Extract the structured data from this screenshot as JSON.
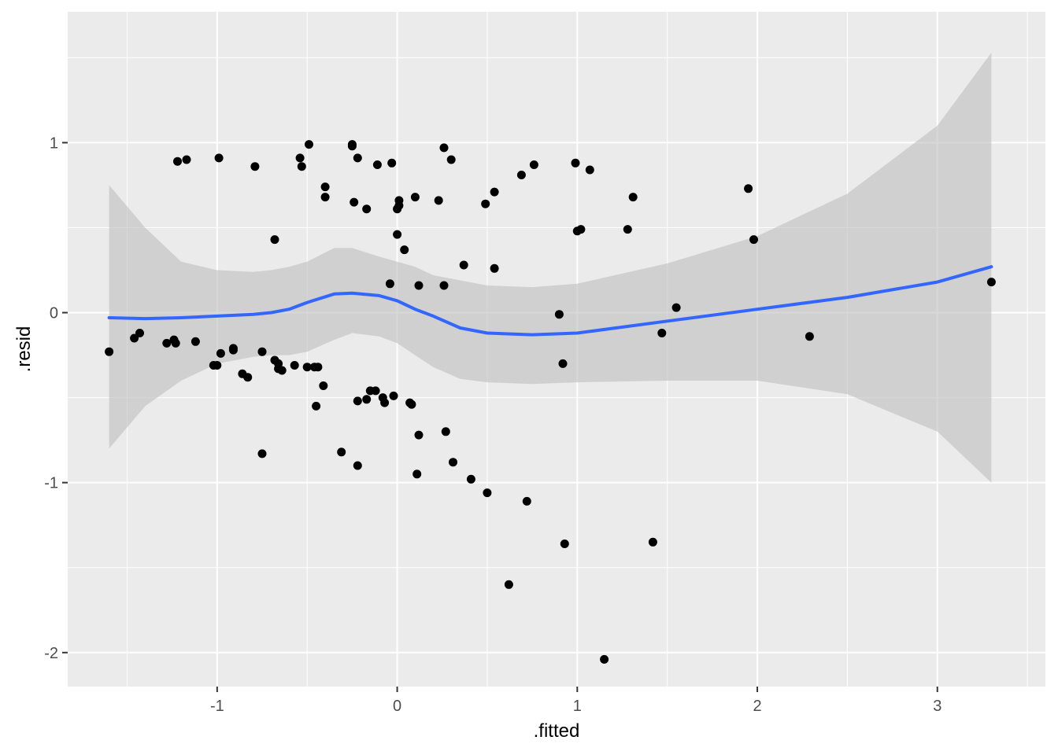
{
  "chart_data": {
    "type": "scatter",
    "xlabel": ".fitted",
    "ylabel": ".resid",
    "xlim": [
      -1.83,
      3.6
    ],
    "ylim": [
      -2.2,
      1.77
    ],
    "x_ticks": [
      -1,
      0,
      1,
      2,
      3
    ],
    "x_tick_labels": [
      "-1",
      "0",
      "1",
      "2",
      "3"
    ],
    "y_ticks": [
      -2,
      -1,
      0,
      1
    ],
    "y_tick_labels": [
      "-2",
      "-1",
      "0",
      "1"
    ],
    "grid": true,
    "panel_background": "#ebebeb",
    "grid_color": "#ffffff",
    "point_color": "#000000",
    "smooth_color": "#3366ff",
    "ribbon_color": "#bebebe",
    "points": [
      {
        "x": -1.6,
        "y": -0.23
      },
      {
        "x": -1.46,
        "y": -0.15
      },
      {
        "x": -1.43,
        "y": -0.12
      },
      {
        "x": -1.28,
        "y": -0.18
      },
      {
        "x": -1.24,
        "y": -0.16
      },
      {
        "x": -1.23,
        "y": -0.18
      },
      {
        "x": -1.22,
        "y": 0.89
      },
      {
        "x": -1.17,
        "y": 0.9
      },
      {
        "x": -1.12,
        "y": -0.17
      },
      {
        "x": -1.02,
        "y": -0.31
      },
      {
        "x": -1.0,
        "y": -0.31
      },
      {
        "x": -0.99,
        "y": 0.91
      },
      {
        "x": -0.98,
        "y": -0.24
      },
      {
        "x": -0.91,
        "y": -0.21
      },
      {
        "x": -0.91,
        "y": -0.22
      },
      {
        "x": -0.86,
        "y": -0.36
      },
      {
        "x": -0.83,
        "y": -0.38
      },
      {
        "x": -0.79,
        "y": 0.86
      },
      {
        "x": -0.75,
        "y": -0.23
      },
      {
        "x": -0.75,
        "y": -0.83
      },
      {
        "x": -0.68,
        "y": 0.43
      },
      {
        "x": -0.68,
        "y": -0.28
      },
      {
        "x": -0.66,
        "y": -0.3
      },
      {
        "x": -0.66,
        "y": -0.33
      },
      {
        "x": -0.64,
        "y": -0.34
      },
      {
        "x": -0.57,
        "y": -0.31
      },
      {
        "x": -0.54,
        "y": 0.91
      },
      {
        "x": -0.53,
        "y": 0.86
      },
      {
        "x": -0.5,
        "y": -0.32
      },
      {
        "x": -0.49,
        "y": 0.99
      },
      {
        "x": -0.46,
        "y": -0.32
      },
      {
        "x": -0.45,
        "y": -0.55
      },
      {
        "x": -0.44,
        "y": -0.32
      },
      {
        "x": -0.41,
        "y": -0.43
      },
      {
        "x": -0.4,
        "y": 0.74
      },
      {
        "x": -0.4,
        "y": 0.68
      },
      {
        "x": -0.31,
        "y": -0.82
      },
      {
        "x": -0.25,
        "y": 0.99
      },
      {
        "x": -0.25,
        "y": 0.98
      },
      {
        "x": -0.24,
        "y": 0.65
      },
      {
        "x": -0.22,
        "y": 0.91
      },
      {
        "x": -0.22,
        "y": -0.52
      },
      {
        "x": -0.22,
        "y": -0.9
      },
      {
        "x": -0.17,
        "y": 0.61
      },
      {
        "x": -0.17,
        "y": -0.51
      },
      {
        "x": -0.15,
        "y": -0.46
      },
      {
        "x": -0.12,
        "y": -0.46
      },
      {
        "x": -0.11,
        "y": 0.87
      },
      {
        "x": -0.08,
        "y": -0.5
      },
      {
        "x": -0.07,
        "y": -0.53
      },
      {
        "x": -0.04,
        "y": 0.17
      },
      {
        "x": -0.03,
        "y": 0.88
      },
      {
        "x": -0.02,
        "y": -0.49
      },
      {
        "x": 0.0,
        "y": 0.46
      },
      {
        "x": 0.0,
        "y": 0.61
      },
      {
        "x": 0.01,
        "y": 0.66
      },
      {
        "x": 0.01,
        "y": 0.63
      },
      {
        "x": 0.04,
        "y": 0.37
      },
      {
        "x": 0.07,
        "y": -0.53
      },
      {
        "x": 0.08,
        "y": -0.54
      },
      {
        "x": 0.1,
        "y": 0.68
      },
      {
        "x": 0.11,
        "y": -0.95
      },
      {
        "x": 0.12,
        "y": 0.16
      },
      {
        "x": 0.12,
        "y": -0.72
      },
      {
        "x": 0.23,
        "y": 0.66
      },
      {
        "x": 0.26,
        "y": 0.97
      },
      {
        "x": 0.26,
        "y": 0.16
      },
      {
        "x": 0.27,
        "y": -0.7
      },
      {
        "x": 0.3,
        "y": 0.9
      },
      {
        "x": 0.31,
        "y": -0.88
      },
      {
        "x": 0.37,
        "y": 0.28
      },
      {
        "x": 0.41,
        "y": -0.98
      },
      {
        "x": 0.49,
        "y": 0.64
      },
      {
        "x": 0.5,
        "y": -1.06
      },
      {
        "x": 0.54,
        "y": 0.71
      },
      {
        "x": 0.54,
        "y": 0.26
      },
      {
        "x": 0.62,
        "y": -1.6
      },
      {
        "x": 0.69,
        "y": 0.81
      },
      {
        "x": 0.72,
        "y": -1.11
      },
      {
        "x": 0.76,
        "y": 0.87
      },
      {
        "x": 0.9,
        "y": -0.01
      },
      {
        "x": 0.92,
        "y": -0.3
      },
      {
        "x": 0.93,
        "y": -1.36
      },
      {
        "x": 0.99,
        "y": 0.88
      },
      {
        "x": 1.0,
        "y": 0.48
      },
      {
        "x": 1.02,
        "y": 0.49
      },
      {
        "x": 1.07,
        "y": 0.84
      },
      {
        "x": 1.15,
        "y": -2.04
      },
      {
        "x": 1.28,
        "y": 0.49
      },
      {
        "x": 1.31,
        "y": 0.68
      },
      {
        "x": 1.42,
        "y": -1.35
      },
      {
        "x": 1.47,
        "y": -0.12
      },
      {
        "x": 1.55,
        "y": 0.03
      },
      {
        "x": 1.95,
        "y": 0.73
      },
      {
        "x": 1.98,
        "y": 0.43
      },
      {
        "x": 2.29,
        "y": -0.14
      },
      {
        "x": 3.3,
        "y": 0.18
      }
    ],
    "smooth": {
      "method": "loess",
      "x": [
        -1.6,
        -1.4,
        -1.2,
        -1.0,
        -0.8,
        -0.7,
        -0.6,
        -0.5,
        -0.35,
        -0.25,
        -0.1,
        0.0,
        0.1,
        0.2,
        0.35,
        0.5,
        0.75,
        1.0,
        1.5,
        2.0,
        2.5,
        3.0,
        3.3
      ],
      "y": [
        -0.03,
        -0.035,
        -0.03,
        -0.02,
        -0.01,
        0.0,
        0.02,
        0.06,
        0.11,
        0.115,
        0.1,
        0.07,
        0.02,
        -0.02,
        -0.09,
        -0.12,
        -0.13,
        -0.12,
        -0.05,
        0.02,
        0.09,
        0.18,
        0.27
      ],
      "lower": [
        -0.8,
        -0.55,
        -0.4,
        -0.3,
        -0.26,
        -0.25,
        -0.25,
        -0.23,
        -0.16,
        -0.12,
        -0.14,
        -0.18,
        -0.25,
        -0.32,
        -0.39,
        -0.41,
        -0.42,
        -0.41,
        -0.4,
        -0.4,
        -0.48,
        -0.7,
        -1.0
      ],
      "upper": [
        0.75,
        0.5,
        0.3,
        0.25,
        0.24,
        0.25,
        0.27,
        0.3,
        0.38,
        0.38,
        0.33,
        0.3,
        0.27,
        0.22,
        0.19,
        0.16,
        0.15,
        0.17,
        0.29,
        0.45,
        0.7,
        1.1,
        1.53
      ]
    }
  }
}
